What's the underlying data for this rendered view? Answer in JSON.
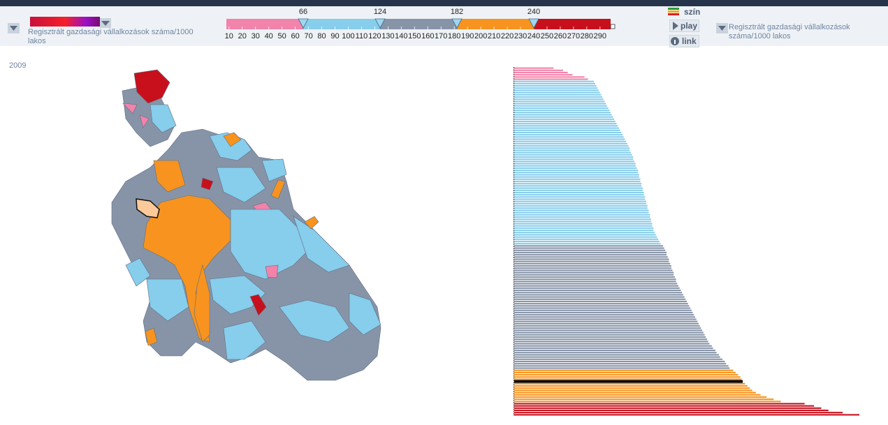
{
  "toolbar": {
    "indicator_label": "Regisztrált gazdasági vállalkozások száma/1000 lakos",
    "second_indicator_label": "Regisztrált gazdasági vállalkozások száma/1000 lakos",
    "buttons": {
      "color": "szín",
      "play": "play",
      "link": "link"
    }
  },
  "year": "2009",
  "chart_data": {
    "type": "bar",
    "orientation": "horizontal",
    "xlim": [
      0,
      290
    ],
    "values": [
      33,
      41,
      45,
      49,
      59,
      62,
      67,
      68,
      69,
      70,
      71,
      72,
      73,
      74,
      75,
      76,
      77,
      78,
      79,
      80,
      81,
      82,
      83,
      84,
      85,
      86,
      87,
      88,
      89,
      90,
      91,
      92,
      93,
      94,
      95,
      96,
      97,
      97,
      98,
      99,
      100,
      100,
      101,
      102,
      102,
      103,
      104,
      104,
      105,
      105,
      106,
      106,
      107,
      107,
      108,
      108,
      109,
      109,
      110,
      110,
      111,
      111,
      112,
      112,
      113,
      113,
      114,
      114,
      115,
      115,
      116,
      116,
      117,
      117,
      118,
      119,
      120,
      121,
      122,
      123,
      125,
      126,
      127,
      128,
      128,
      129,
      130,
      130,
      131,
      132,
      132,
      133,
      134,
      134,
      135,
      136,
      136,
      137,
      138,
      139,
      140,
      141,
      142,
      143,
      144,
      145,
      146,
      147,
      148,
      149,
      150,
      151,
      152,
      153,
      154,
      155,
      156,
      157,
      158,
      159,
      160,
      161,
      162,
      163,
      164,
      166,
      167,
      169,
      170,
      172,
      173,
      175,
      177,
      178,
      180,
      181,
      184,
      186,
      188,
      190,
      191,
      192,
      194,
      196,
      198,
      200,
      203,
      207,
      212,
      218,
      224,
      244,
      252,
      258,
      264,
      276,
      290
    ],
    "selected_index": 141,
    "legend": {
      "scale_range": [
        8,
        298
      ],
      "scale_ticks": [
        10,
        20,
        30,
        40,
        50,
        60,
        70,
        80,
        90,
        100,
        110,
        120,
        130,
        140,
        150,
        160,
        170,
        180,
        190,
        200,
        210,
        220,
        230,
        240,
        250,
        260,
        270,
        280,
        290
      ],
      "thresholds": [
        66,
        124,
        182,
        240
      ],
      "colors": [
        "#f283aa",
        "#87cdec",
        "#8794a8",
        "#f7931e",
        "#c8101c"
      ]
    }
  }
}
